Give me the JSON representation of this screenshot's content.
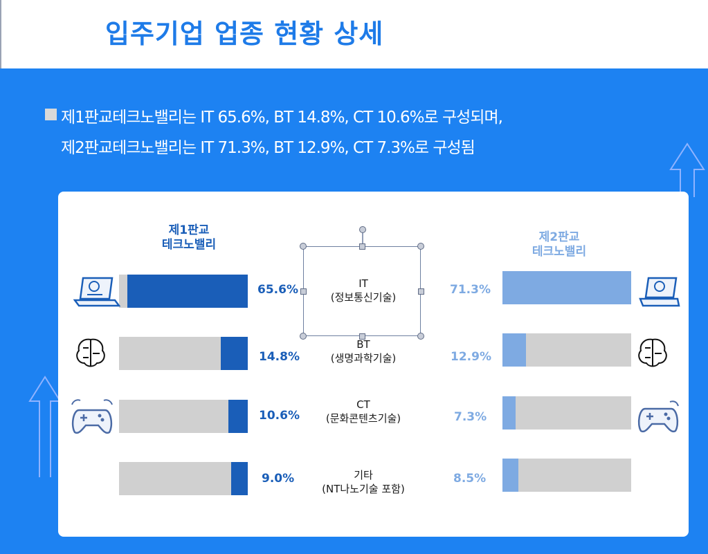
{
  "page_title": "입주기업 업종 현황 상세",
  "summary": {
    "line1": "제1판교테크노밸리는 IT 65.6%, BT 14.8%, CT 10.6%로 구성되며,",
    "line2": "제2판교테크노밸리는 IT 71.3%,  BT 12.9%, CT 7.3%로 구성됨"
  },
  "colors": {
    "background_blue": "#1d82f2",
    "title_blue": "#1e7be8",
    "valley1_fill": "#1a5eb8",
    "valley2_fill": "#7eaae2",
    "bar_bg": "#d0d0d0"
  },
  "chart_data": {
    "type": "bar",
    "orientation": "horizontal",
    "categories": [
      {
        "name": "IT",
        "sub": "(정보통신기술)",
        "icon": "laptop-icon"
      },
      {
        "name": "BT",
        "sub": "(생명과학기술)",
        "icon": "brain-icon"
      },
      {
        "name": "CT",
        "sub": "(문화콘텐츠기술)",
        "icon": "gamepad-icon"
      },
      {
        "name": "기타",
        "sub": "(NT나노기술 포함)",
        "icon": ""
      }
    ],
    "series": [
      {
        "name_line1": "제1판교",
        "name_line2": "테크노밸리",
        "values": [
          65.6,
          14.8,
          10.6,
          9.0
        ],
        "labels": [
          "65.6%",
          "14.8%",
          "10.6%",
          "9.0%"
        ],
        "color": "#1a5eb8"
      },
      {
        "name_line1": "제2판교",
        "name_line2": "테크노밸리",
        "values": [
          71.3,
          12.9,
          7.3,
          8.5
        ],
        "labels": [
          "71.3%",
          "12.9%",
          "7.3%",
          "8.5%"
        ],
        "color": "#7eaae2"
      }
    ],
    "xlim": [
      0,
      70
    ]
  }
}
